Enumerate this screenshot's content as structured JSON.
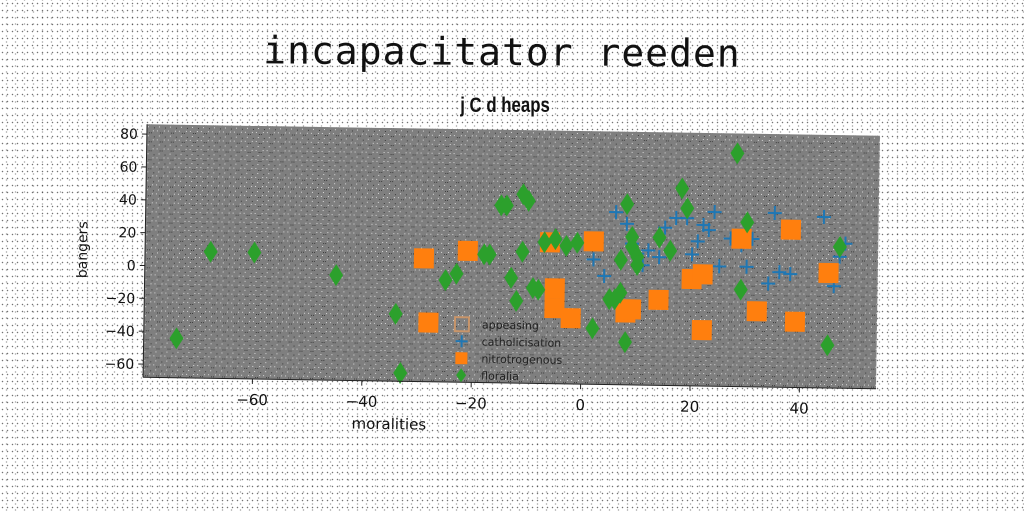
{
  "chart_data": {
    "type": "scatter",
    "title": "incapacitator reeden",
    "subtitle": "j C d heaps",
    "xlabel": "moralities",
    "ylabel": "bangers",
    "xlim": [
      -80,
      54
    ],
    "ylim": [
      -68,
      86
    ],
    "xticks": [
      -60,
      -40,
      -20,
      0,
      20,
      40
    ],
    "yticks": [
      -60,
      -40,
      -20,
      0,
      20,
      40,
      60,
      80
    ],
    "grid": false,
    "legend_position": "lower-center",
    "series": [
      {
        "name": "appeasing",
        "marker": "square-outline",
        "color": "#c8956a",
        "points": []
      },
      {
        "name": "catholicisation",
        "marker": "plus",
        "color": "#1f77b4",
        "points": [
          [
            2,
            8
          ],
          [
            4,
            -2
          ],
          [
            6,
            37
          ],
          [
            8,
            30
          ],
          [
            9,
            18
          ],
          [
            10,
            12
          ],
          [
            11,
            5
          ],
          [
            12,
            14
          ],
          [
            14,
            10
          ],
          [
            15,
            28
          ],
          [
            17,
            34
          ],
          [
            19,
            34
          ],
          [
            20,
            12
          ],
          [
            21,
            20
          ],
          [
            22,
            30
          ],
          [
            23,
            27
          ],
          [
            24,
            38
          ],
          [
            25,
            5
          ],
          [
            27,
            22
          ],
          [
            29,
            18
          ],
          [
            30,
            5
          ],
          [
            31,
            22
          ],
          [
            34,
            -5
          ],
          [
            35,
            38
          ],
          [
            36,
            2
          ],
          [
            38,
            1
          ],
          [
            44,
            36
          ],
          [
            46,
            -6
          ],
          [
            47,
            12
          ],
          [
            48,
            20
          ]
        ]
      },
      {
        "name": "nitrotrogenous",
        "marker": "square",
        "color": "#ff7f0e",
        "points": [
          [
            -29,
            7
          ],
          [
            -28,
            -32
          ],
          [
            -21,
            12
          ],
          [
            -6,
            18
          ],
          [
            -5,
            -22
          ],
          [
            -5,
            -10
          ],
          [
            -2,
            -28
          ],
          [
            2,
            19
          ],
          [
            8,
            -24
          ],
          [
            9,
            -22
          ],
          [
            14,
            -16
          ],
          [
            20,
            -3
          ],
          [
            22,
            0
          ],
          [
            22,
            -34
          ],
          [
            29,
            22
          ],
          [
            32,
            -22
          ],
          [
            38,
            28
          ],
          [
            39,
            -28
          ],
          [
            45,
            2
          ]
        ]
      },
      {
        "name": "floralia",
        "marker": "diamond",
        "color": "#2ca02c",
        "points": [
          [
            -74,
            -44
          ],
          [
            -68,
            9
          ],
          [
            -60,
            9
          ],
          [
            -45,
            -4
          ],
          [
            -34,
            -27
          ],
          [
            -33,
            -63
          ],
          [
            -25,
            -6
          ],
          [
            -23,
            -2
          ],
          [
            -18,
            10
          ],
          [
            -17,
            10
          ],
          [
            -15,
            40
          ],
          [
            -14,
            40
          ],
          [
            -13,
            -4
          ],
          [
            -12,
            -18
          ],
          [
            -11,
            12
          ],
          [
            -11,
            47
          ],
          [
            -10,
            43
          ],
          [
            -9,
            -10
          ],
          [
            -8,
            -11
          ],
          [
            -7,
            18
          ],
          [
            -5,
            20
          ],
          [
            -3,
            16
          ],
          [
            -1,
            18
          ],
          [
            2,
            -34
          ],
          [
            5,
            -16
          ],
          [
            6,
            -16
          ],
          [
            7,
            8
          ],
          [
            7,
            -12
          ],
          [
            8,
            -42
          ],
          [
            8,
            42
          ],
          [
            9,
            16
          ],
          [
            9,
            22
          ],
          [
            10,
            10
          ],
          [
            10,
            5
          ],
          [
            14,
            22
          ],
          [
            16,
            14
          ],
          [
            18,
            52
          ],
          [
            19,
            40
          ],
          [
            28,
            74
          ],
          [
            29,
            -9
          ],
          [
            30,
            32
          ],
          [
            45,
            -42
          ],
          [
            47,
            18
          ]
        ]
      }
    ]
  }
}
